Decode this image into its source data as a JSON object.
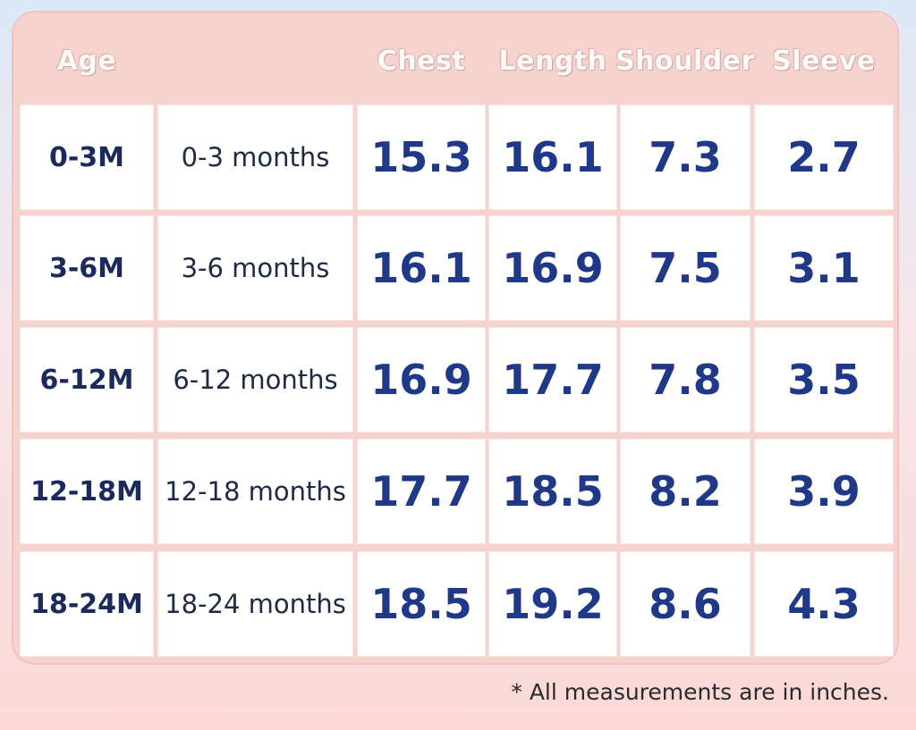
{
  "headers": {
    "age": "Age",
    "chest": "Chest",
    "length": "Length",
    "shoulder": "Shoulder",
    "sleeve": "Sleeve"
  },
  "rows": [
    {
      "code": "0-3M",
      "desc": "0-3 months",
      "chest": "15.3",
      "length": "16.1",
      "shoulder": "7.3",
      "sleeve": "2.7"
    },
    {
      "code": "3-6M",
      "desc": "3-6 months",
      "chest": "16.1",
      "length": "16.9",
      "shoulder": "7.5",
      "sleeve": "3.1"
    },
    {
      "code": "6-12M",
      "desc": "6-12 months",
      "chest": "16.9",
      "length": "17.7",
      "shoulder": "7.8",
      "sleeve": "3.5"
    },
    {
      "code": "12-18M",
      "desc": "12-18 months",
      "chest": "17.7",
      "length": "18.5",
      "shoulder": "8.2",
      "sleeve": "3.9"
    },
    {
      "code": "18-24M",
      "desc": "18-24 months",
      "chest": "18.5",
      "length": "19.2",
      "shoulder": "8.6",
      "sleeve": "4.3"
    }
  ],
  "footnote": "* All measurements are in inches.",
  "colors": {
    "card": "#f7d3cf",
    "value_text": "#1f3988",
    "age_text": "#1a2a5c"
  }
}
